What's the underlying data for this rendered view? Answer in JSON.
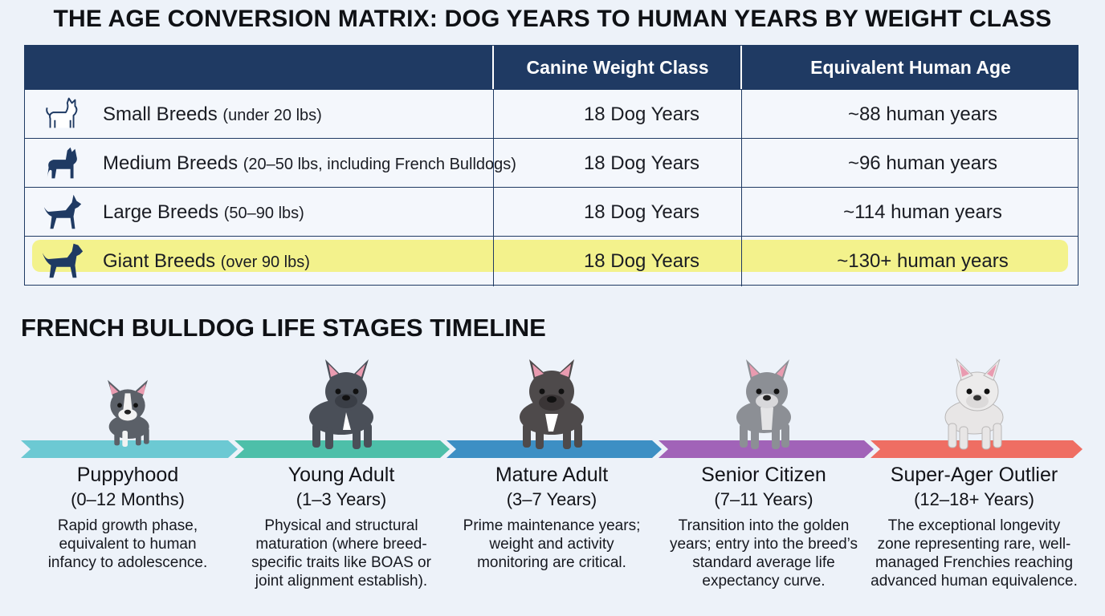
{
  "title": "THE AGE CONVERSION MATRIX: DOG YEARS TO HUMAN YEARS BY WEIGHT CLASS",
  "matrix": {
    "headers": [
      "",
      "Canine Weight Class",
      "Equivalent Human Age"
    ],
    "rows": [
      {
        "name": "Small Breeds",
        "detail": "(under 20 lbs)",
        "dog_years": "18 Dog Years",
        "human_years": "~88 human years",
        "icon": "small-dog-outline-icon"
      },
      {
        "name": "Medium Breeds",
        "detail": "(20–50 lbs, including French Bulldogs)",
        "dog_years": "18 Dog Years",
        "human_years": "~96 human years",
        "icon": "medium-dog-silhouette-icon"
      },
      {
        "name": "Large Breeds",
        "detail": "(50–90 lbs)",
        "dog_years": "18 Dog Years",
        "human_years": "~114 human years",
        "icon": "large-dog-silhouette-icon"
      },
      {
        "name": "Giant Breeds",
        "detail": "(over 90 lbs)",
        "dog_years": "18 Dog Years",
        "human_years": "~130+ human years",
        "icon": "giant-dog-silhouette-icon",
        "highlighted": true
      }
    ],
    "colors": {
      "header": "#1f3a63",
      "highlight": "#f3f28c"
    }
  },
  "timeline": {
    "title": "FRENCH BULLDOG LIFE STAGES TIMELINE",
    "stages": [
      {
        "label": "Puppyhood",
        "range": "(0–12 Months)",
        "desc": [
          "Rapid growth phase,",
          "equivalent to human",
          "infancy to adolescence."
        ],
        "color": "#6cc9d3",
        "icon": "puppy-bulldog-icon"
      },
      {
        "label": "Young Adult",
        "range": "(1–3 Years)",
        "desc": [
          "Physical and structural",
          "maturation (where breed-",
          "specific traits like BOAS or",
          "joint alignment establish)."
        ],
        "color": "#4dbfa9",
        "icon": "young-bulldog-icon"
      },
      {
        "label": "Mature Adult",
        "range": "(3–7 Years)",
        "desc": [
          "Prime maintenance years;",
          "weight and activity",
          "monitoring are critical."
        ],
        "color": "#3d8fc4",
        "icon": "adult-bulldog-icon"
      },
      {
        "label": "Senior Citizen",
        "range": "(7–11 Years)",
        "desc": [
          "Transition into the golden",
          "years; entry into the breed’s",
          "standard average life",
          "expectancy curve."
        ],
        "color": "#a163b8",
        "icon": "senior-bulldog-icon"
      },
      {
        "label": "Super-Ager Outlier",
        "range": "(12–18+ Years)",
        "desc": [
          "The exceptional longevity",
          "zone representing rare, well-",
          "managed Frenchies reaching",
          "advanced human equivalence."
        ],
        "color": "#ef6e63",
        "icon": "super-ager-bulldog-icon"
      }
    ]
  }
}
